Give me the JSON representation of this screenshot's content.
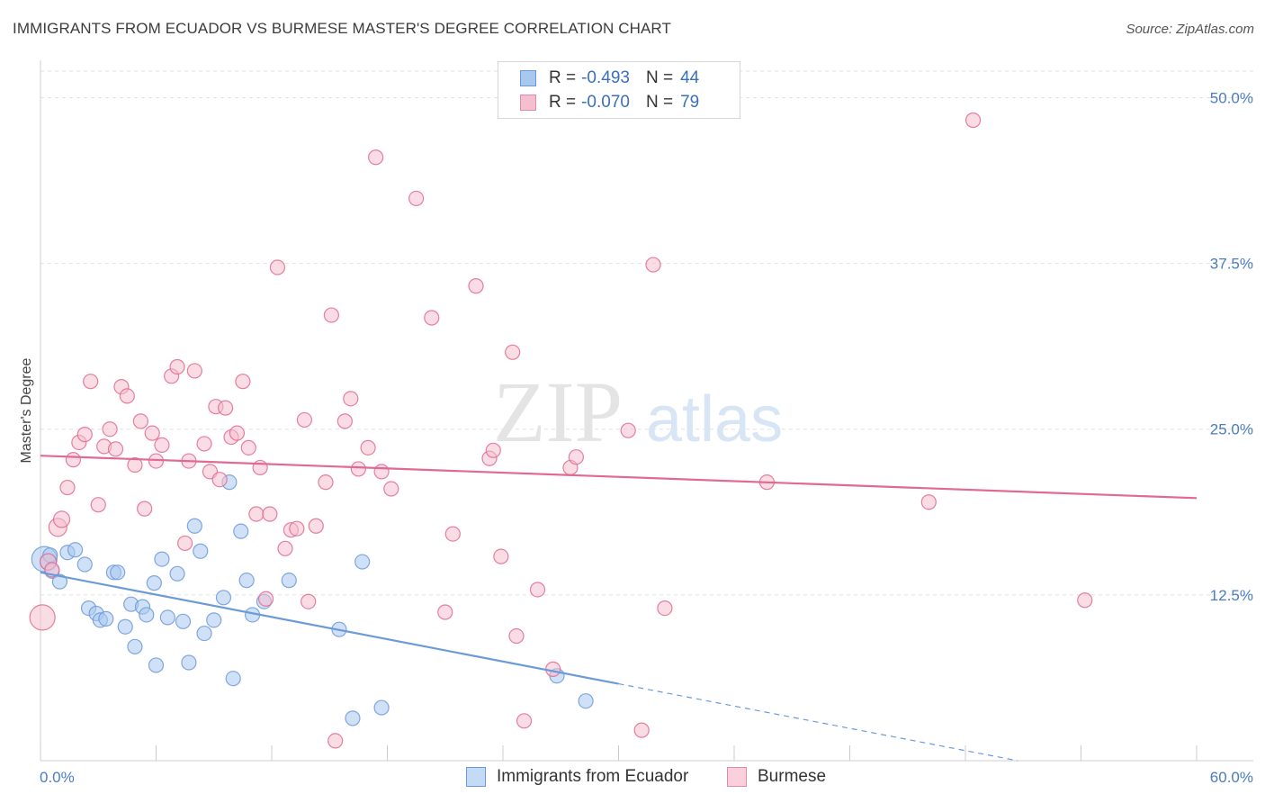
{
  "header": {
    "title": "IMMIGRANTS FROM ECUADOR VS BURMESE MASTER'S DEGREE CORRELATION CHART",
    "source": "Source: ZipAtlas.com"
  },
  "watermark": {
    "zip": "ZIP",
    "atlas": "atlas"
  },
  "legend": {
    "rows": [
      {
        "r_label": "R =",
        "r_value": "-0.493",
        "n_label": "N =",
        "n_value": "44",
        "color": "#a9c8f0",
        "border": "#6b9ad8"
      },
      {
        "r_label": "R =",
        "r_value": "-0.070",
        "n_label": "N =",
        "n_value": "79",
        "color": "#f6bfd0",
        "border": "#e38aa8"
      }
    ]
  },
  "bottom_legend": {
    "items": [
      {
        "label": "Immigrants from Ecuador",
        "color": "#c4dbf5",
        "border": "#6b9ad8"
      },
      {
        "label": "Burmese",
        "color": "#fad0dd",
        "border": "#e38aa8"
      }
    ]
  },
  "chart_data": {
    "type": "scatter",
    "title": "IMMIGRANTS FROM ECUADOR VS BURMESE MASTER'S DEGREE CORRELATION CHART",
    "xlabel": "",
    "ylabel": "Master's Degree",
    "xlim": [
      0,
      60
    ],
    "ylim": [
      0,
      52
    ],
    "x_tick_labels": [
      "0.0%",
      "60.0%"
    ],
    "y_ticks": [
      12.5,
      25.0,
      37.5,
      50.0
    ],
    "y_tick_labels": [
      "12.5%",
      "25.0%",
      "37.5%",
      "50.0%"
    ],
    "grid": true,
    "legend_position": "top-center",
    "series": [
      {
        "name": "Immigrants from Ecuador",
        "color": "#6b9ad8",
        "fill": "#a9c8f0",
        "trend": {
          "x0": 0,
          "y0": 14.2,
          "x1": 30,
          "y1": 5.8,
          "dash_to_x": 60,
          "dash_to_y": -2.6
        },
        "points": [
          [
            0.2,
            15.2,
            14
          ],
          [
            0.4,
            15.0,
            9
          ],
          [
            0.6,
            14.3,
            8
          ],
          [
            1.0,
            13.5,
            8
          ],
          [
            1.4,
            15.7,
            8
          ],
          [
            1.8,
            15.9,
            8
          ],
          [
            2.3,
            14.8,
            8
          ],
          [
            2.5,
            11.5,
            8
          ],
          [
            2.9,
            11.1,
            8
          ],
          [
            3.1,
            10.6,
            8
          ],
          [
            3.4,
            10.7,
            8
          ],
          [
            3.8,
            14.2,
            8
          ],
          [
            4.0,
            14.2,
            8
          ],
          [
            4.4,
            10.1,
            8
          ],
          [
            4.7,
            11.8,
            8
          ],
          [
            4.9,
            8.6,
            8
          ],
          [
            5.3,
            11.6,
            8
          ],
          [
            5.5,
            11.0,
            8
          ],
          [
            5.9,
            13.4,
            8
          ],
          [
            6.0,
            7.2,
            8
          ],
          [
            6.3,
            15.2,
            8
          ],
          [
            6.6,
            10.8,
            8
          ],
          [
            7.1,
            14.1,
            8
          ],
          [
            7.4,
            10.5,
            8
          ],
          [
            7.7,
            7.4,
            8
          ],
          [
            8.0,
            17.7,
            8
          ],
          [
            8.3,
            15.8,
            8
          ],
          [
            8.5,
            9.6,
            8
          ],
          [
            9.0,
            10.6,
            8
          ],
          [
            9.5,
            12.3,
            8
          ],
          [
            9.8,
            21.0,
            8
          ],
          [
            10.0,
            6.2,
            8
          ],
          [
            10.4,
            17.3,
            8
          ],
          [
            10.7,
            13.6,
            8
          ],
          [
            11.0,
            11.0,
            8
          ],
          [
            11.6,
            12.0,
            8
          ],
          [
            12.9,
            13.6,
            8
          ],
          [
            15.5,
            9.9,
            8
          ],
          [
            16.2,
            3.2,
            8
          ],
          [
            16.7,
            15.0,
            8
          ],
          [
            17.7,
            4.0,
            8
          ],
          [
            26.8,
            6.4,
            8
          ],
          [
            28.3,
            4.5,
            8
          ],
          [
            0.5,
            15.5,
            8
          ]
        ]
      },
      {
        "name": "Burmese",
        "color": "#e06a92",
        "fill": "#f6bfd0",
        "trend": {
          "x0": 0,
          "y0": 23.0,
          "x1": 60,
          "y1": 19.8
        },
        "points": [
          [
            0.1,
            10.8,
            14
          ],
          [
            0.4,
            15.0,
            9
          ],
          [
            0.6,
            14.4,
            8
          ],
          [
            0.9,
            17.6,
            10
          ],
          [
            1.1,
            18.2,
            9
          ],
          [
            1.4,
            20.6,
            8
          ],
          [
            1.7,
            22.7,
            8
          ],
          [
            2.0,
            24.0,
            8
          ],
          [
            2.3,
            24.6,
            8
          ],
          [
            2.6,
            28.6,
            8
          ],
          [
            3.0,
            19.3,
            8
          ],
          [
            3.3,
            23.7,
            8
          ],
          [
            3.6,
            25.0,
            8
          ],
          [
            3.9,
            23.5,
            8
          ],
          [
            4.2,
            28.2,
            8
          ],
          [
            4.5,
            27.5,
            8
          ],
          [
            4.9,
            22.3,
            8
          ],
          [
            5.2,
            25.6,
            8
          ],
          [
            5.4,
            19.0,
            8
          ],
          [
            5.8,
            24.7,
            8
          ],
          [
            6.0,
            22.6,
            8
          ],
          [
            6.3,
            23.8,
            8
          ],
          [
            6.8,
            29.0,
            8
          ],
          [
            7.1,
            29.7,
            8
          ],
          [
            7.5,
            16.4,
            8
          ],
          [
            7.7,
            22.6,
            8
          ],
          [
            8.0,
            29.4,
            8
          ],
          [
            8.5,
            23.9,
            8
          ],
          [
            8.8,
            21.8,
            8
          ],
          [
            9.1,
            26.7,
            8
          ],
          [
            9.3,
            21.2,
            8
          ],
          [
            9.6,
            26.6,
            8
          ],
          [
            9.9,
            24.4,
            8
          ],
          [
            10.2,
            24.7,
            8
          ],
          [
            10.5,
            28.6,
            8
          ],
          [
            10.8,
            23.6,
            8
          ],
          [
            11.2,
            18.6,
            8
          ],
          [
            11.4,
            22.1,
            8
          ],
          [
            11.7,
            12.2,
            8
          ],
          [
            11.9,
            18.6,
            8
          ],
          [
            12.3,
            37.2,
            8
          ],
          [
            12.7,
            16.0,
            8
          ],
          [
            13.0,
            17.4,
            8
          ],
          [
            13.3,
            17.5,
            8
          ],
          [
            13.7,
            25.7,
            8
          ],
          [
            13.9,
            12.0,
            8
          ],
          [
            14.3,
            17.7,
            8
          ],
          [
            14.8,
            21.0,
            8
          ],
          [
            15.1,
            33.6,
            8
          ],
          [
            15.3,
            1.5,
            8
          ],
          [
            15.8,
            25.6,
            8
          ],
          [
            16.1,
            27.3,
            8
          ],
          [
            16.5,
            22.0,
            8
          ],
          [
            17.0,
            23.6,
            8
          ],
          [
            17.4,
            45.5,
            8
          ],
          [
            17.7,
            21.8,
            8
          ],
          [
            18.2,
            20.5,
            8
          ],
          [
            19.5,
            42.4,
            8
          ],
          [
            20.3,
            33.4,
            8
          ],
          [
            21.0,
            11.2,
            8
          ],
          [
            21.4,
            17.1,
            8
          ],
          [
            22.6,
            35.8,
            8
          ],
          [
            23.3,
            22.8,
            8
          ],
          [
            23.5,
            23.4,
            8
          ],
          [
            23.9,
            15.4,
            8
          ],
          [
            24.5,
            30.8,
            8
          ],
          [
            24.7,
            9.4,
            8
          ],
          [
            25.1,
            3.0,
            8
          ],
          [
            25.8,
            12.9,
            8
          ],
          [
            26.6,
            6.9,
            8
          ],
          [
            27.5,
            22.1,
            8
          ],
          [
            27.8,
            22.9,
            8
          ],
          [
            30.5,
            24.9,
            8
          ],
          [
            31.2,
            2.3,
            8
          ],
          [
            31.8,
            37.4,
            8
          ],
          [
            32.4,
            11.5,
            8
          ],
          [
            37.7,
            21.0,
            8
          ],
          [
            46.1,
            19.5,
            8
          ],
          [
            48.4,
            48.3,
            8
          ],
          [
            54.2,
            12.1,
            8
          ]
        ]
      }
    ]
  }
}
